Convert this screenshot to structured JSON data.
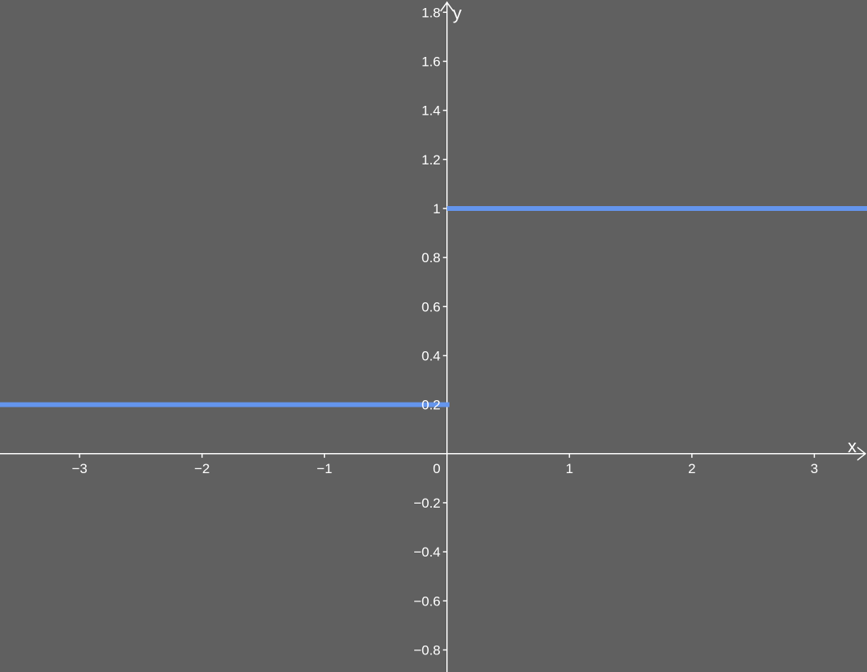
{
  "chart_data": {
    "type": "line",
    "title": "",
    "xlabel": "x",
    "ylabel": "y",
    "xlim": [
      -3.65,
      3.43
    ],
    "ylim": [
      -0.89,
      1.85
    ],
    "grid": false,
    "background": "#606060",
    "axis_color": "#ffffff",
    "line_color": "#6495ed",
    "x_ticks": [
      {
        "value": -3,
        "label": "−3"
      },
      {
        "value": -2,
        "label": "−2"
      },
      {
        "value": -1,
        "label": "−1"
      },
      {
        "value": 1,
        "label": "1"
      },
      {
        "value": 2,
        "label": "2"
      },
      {
        "value": 3,
        "label": "3"
      }
    ],
    "y_ticks": [
      {
        "value": -0.8,
        "label": "−0.8"
      },
      {
        "value": -0.6,
        "label": "−0.6"
      },
      {
        "value": -0.4,
        "label": "−0.4"
      },
      {
        "value": -0.2,
        "label": "−0.2"
      },
      {
        "value": 0.2,
        "label": "0.2"
      },
      {
        "value": 0.4,
        "label": "0.4"
      },
      {
        "value": 0.6,
        "label": "0.6"
      },
      {
        "value": 0.8,
        "label": "0.8"
      },
      {
        "value": 1,
        "label": "1"
      },
      {
        "value": 1.2,
        "label": "1.2"
      },
      {
        "value": 1.4,
        "label": "1.4"
      },
      {
        "value": 1.6,
        "label": "1.6"
      },
      {
        "value": 1.8,
        "label": "1.8"
      }
    ],
    "origin_label": "0",
    "series": [
      {
        "color": "#6495ed",
        "segments": [
          {
            "x": [
              -3.65,
              0.02
            ],
            "y": [
              0.2,
              0.2
            ]
          },
          {
            "x": [
              0,
              3.43
            ],
            "y": [
              1,
              1
            ]
          }
        ]
      }
    ]
  }
}
